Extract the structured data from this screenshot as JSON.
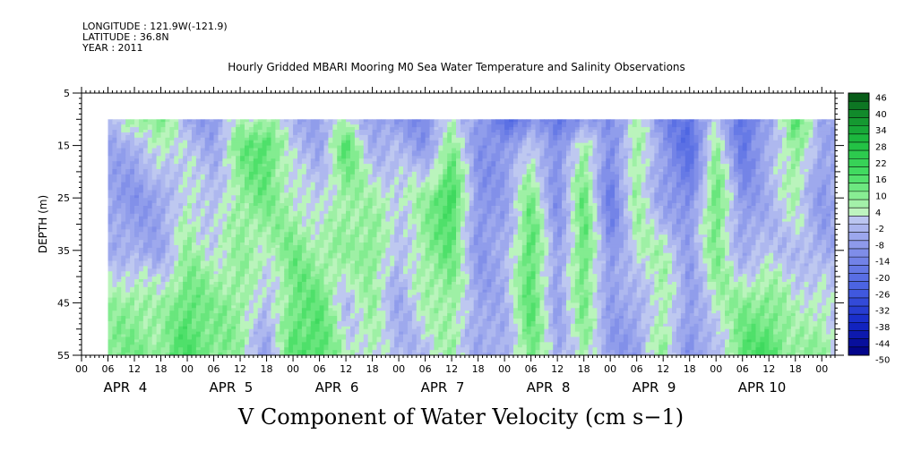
{
  "meta": {
    "longitude": "LONGITUDE : 121.9W(-121.9)",
    "latitude": "LATITUDE : 36.8N",
    "year": "YEAR : 2011"
  },
  "title": "Hourly Gridded MBARI Mooring M0 Sea Water Temperature and Salinity Observations",
  "chart_data": {
    "type": "heatmap",
    "title": "Hourly Gridded MBARI Mooring M0 Sea Water Temperature and Salinity Observations",
    "xlabel": "V Component of Water Velocity (cm s−1)",
    "ylabel": "DEPTH (m)",
    "ylim": [
      5,
      55
    ],
    "y_reversed": true,
    "y_ticks": [
      "5",
      "15",
      "25",
      "35",
      "45",
      "55"
    ],
    "x_hour_ticks": [
      "00",
      "06",
      "12",
      "18",
      "00",
      "06",
      "12",
      "18",
      "00",
      "06",
      "12",
      "18",
      "00",
      "06",
      "12",
      "18",
      "00",
      "06",
      "12",
      "18",
      "00",
      "06",
      "12",
      "18",
      "00",
      "06",
      "12",
      "18",
      "00"
    ],
    "x_day_labels": [
      "APR  4",
      "APR  5",
      "APR  6",
      "APR  7",
      "APR  8",
      "APR  9",
      "APR 10"
    ],
    "x_range": [
      "2011-04-04 00:00",
      "2011-04-11 03:00"
    ],
    "data_start": "2011-04-04 06:00",
    "data_depth_range": [
      10,
      55
    ],
    "units": "cm s-1",
    "colorbar_labels": [
      "46",
      "40",
      "34",
      "28",
      "22",
      "16",
      "10",
      "4",
      "-2",
      "-8",
      "-14",
      "-20",
      "-26",
      "-32",
      "-38",
      "-44",
      "-50"
    ],
    "colorbar_levels": [
      46,
      43,
      40,
      37,
      34,
      31,
      28,
      25,
      22,
      19,
      16,
      13,
      10,
      7,
      4,
      1,
      -2,
      -5,
      -8,
      -11,
      -14,
      -17,
      -20,
      -23,
      -26,
      -29,
      -32,
      -35,
      -38,
      -41,
      -44,
      -47,
      -50
    ],
    "color_scale": {
      "negative_strong": "#000080",
      "negative_weak": "#b0b8ec",
      "positive_weak": "#b4f0b4",
      "positive_strong": "#0a5a14"
    },
    "profile_depths": [
      10,
      15,
      25,
      35,
      45,
      55
    ],
    "v_profiles": [
      {
        "time": "04 06",
        "v": [
          -4,
          -6,
          -8,
          -4,
          6,
          8
        ]
      },
      {
        "time": "04 12",
        "v": [
          6,
          -6,
          -10,
          -6,
          8,
          10
        ]
      },
      {
        "time": "04 18",
        "v": [
          10,
          6,
          -8,
          -6,
          4,
          8
        ]
      },
      {
        "time": "05 00",
        "v": [
          -6,
          -2,
          4,
          6,
          14,
          16
        ]
      },
      {
        "time": "05 06",
        "v": [
          -10,
          -6,
          -4,
          2,
          8,
          10
        ]
      },
      {
        "time": "05 12",
        "v": [
          4,
          10,
          8,
          6,
          8,
          6
        ]
      },
      {
        "time": "05 18",
        "v": [
          6,
          16,
          10,
          4,
          -4,
          -8
        ]
      },
      {
        "time": "06 00",
        "v": [
          -4,
          -2,
          4,
          10,
          12,
          14
        ]
      },
      {
        "time": "06 06",
        "v": [
          -8,
          -6,
          -2,
          6,
          12,
          16
        ]
      },
      {
        "time": "06 12",
        "v": [
          4,
          14,
          8,
          6,
          -2,
          2
        ]
      },
      {
        "time": "06 18",
        "v": [
          -8,
          -4,
          4,
          10,
          6,
          4
        ]
      },
      {
        "time": "07 00",
        "v": [
          -10,
          -4,
          2,
          -4,
          -6,
          -4
        ]
      },
      {
        "time": "07 06",
        "v": [
          -14,
          -10,
          6,
          8,
          4,
          -2
        ]
      },
      {
        "time": "07 12",
        "v": [
          4,
          8,
          20,
          12,
          8,
          6
        ]
      },
      {
        "time": "07 18",
        "v": [
          -8,
          -10,
          -12,
          -10,
          -8,
          -6
        ]
      },
      {
        "time": "08 00",
        "v": [
          -22,
          -12,
          -8,
          -6,
          -4,
          -6
        ]
      },
      {
        "time": "08 06",
        "v": [
          -12,
          2,
          10,
          16,
          14,
          12
        ]
      },
      {
        "time": "08 12",
        "v": [
          -18,
          -14,
          -12,
          -10,
          -8,
          -6
        ]
      },
      {
        "time": "08 18",
        "v": [
          -10,
          8,
          12,
          14,
          10,
          6
        ]
      },
      {
        "time": "09 00",
        "v": [
          -12,
          -14,
          -18,
          -12,
          -8,
          -10
        ]
      },
      {
        "time": "09 06",
        "v": [
          4,
          8,
          6,
          4,
          -6,
          -8
        ]
      },
      {
        "time": "09 12",
        "v": [
          -14,
          -10,
          -8,
          4,
          6,
          8
        ]
      },
      {
        "time": "09 18",
        "v": [
          -20,
          -22,
          -14,
          -8,
          -10,
          -12
        ]
      },
      {
        "time": "10 00",
        "v": [
          2,
          6,
          14,
          10,
          4,
          -4
        ]
      },
      {
        "time": "10 06",
        "v": [
          -22,
          -18,
          -12,
          -6,
          8,
          14
        ]
      },
      {
        "time": "10 12",
        "v": [
          -6,
          -6,
          -4,
          -2,
          10,
          16
        ]
      },
      {
        "time": "10 18",
        "v": [
          14,
          10,
          4,
          -2,
          2,
          6
        ]
      },
      {
        "time": "11 00",
        "v": [
          -6,
          -8,
          -10,
          -6,
          4,
          8
        ]
      },
      {
        "time": "11 03",
        "v": [
          -4,
          -6,
          -6,
          -4,
          -2,
          2
        ]
      }
    ]
  }
}
